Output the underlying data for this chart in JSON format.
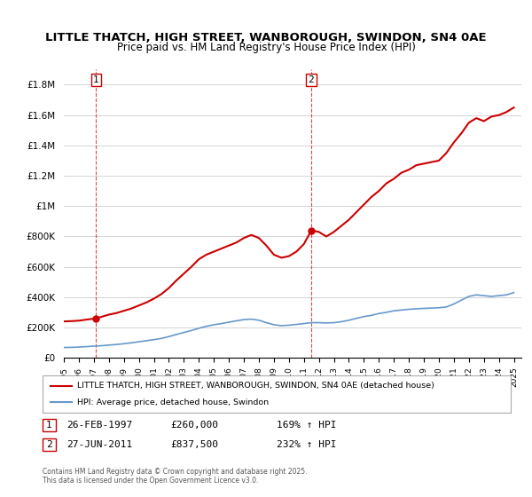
{
  "title": "LITTLE THATCH, HIGH STREET, WANBOROUGH, SWINDON, SN4 0AE",
  "subtitle": "Price paid vs. HM Land Registry's House Price Index (HPI)",
  "legend_line1": "LITTLE THATCH, HIGH STREET, WANBOROUGH, SWINDON, SN4 0AE (detached house)",
  "legend_line2": "HPI: Average price, detached house, Swindon",
  "annotation1_label": "1",
  "annotation1_date": "26-FEB-1997",
  "annotation1_price": "£260,000",
  "annotation1_hpi": "169% ↑ HPI",
  "annotation2_label": "2",
  "annotation2_date": "27-JUN-2011",
  "annotation2_price": "£837,500",
  "annotation2_hpi": "232% ↑ HPI",
  "footer": "Contains HM Land Registry data © Crown copyright and database right 2025.\nThis data is licensed under the Open Government Licence v3.0.",
  "red_color": "#cc0000",
  "blue_color": "#6699cc",
  "ylim_min": 0,
  "ylim_max": 1900000,
  "yticks": [
    0,
    200000,
    400000,
    600000,
    800000,
    1000000,
    1200000,
    1400000,
    1600000,
    1800000
  ],
  "ytick_labels": [
    "£0",
    "£200K",
    "£400K",
    "£600K",
    "£800K",
    "£1M",
    "£1.2M",
    "£1.4M",
    "£1.6M",
    "£1.8M"
  ],
  "x_start": 1995.0,
  "x_end": 2025.5,
  "marker1_x": 1997.15,
  "marker1_y": 260000,
  "marker2_x": 2011.49,
  "marker2_y": 837500,
  "vline1_x": 1997.15,
  "vline2_x": 2011.49,
  "red_x": [
    1995.0,
    1995.5,
    1996.0,
    1996.5,
    1997.15,
    1997.5,
    1998.0,
    1998.5,
    1999.0,
    1999.5,
    2000.0,
    2000.5,
    2001.0,
    2001.5,
    2002.0,
    2002.5,
    2003.0,
    2003.5,
    2004.0,
    2004.5,
    2005.0,
    2005.5,
    2006.0,
    2006.5,
    2007.0,
    2007.5,
    2008.0,
    2008.5,
    2009.0,
    2009.5,
    2010.0,
    2010.5,
    2011.0,
    2011.49,
    2011.5,
    2012.0,
    2012.5,
    2013.0,
    2013.5,
    2014.0,
    2014.5,
    2015.0,
    2015.5,
    2016.0,
    2016.5,
    2017.0,
    2017.5,
    2018.0,
    2018.5,
    2019.0,
    2019.5,
    2020.0,
    2020.5,
    2021.0,
    2021.5,
    2022.0,
    2022.5,
    2023.0,
    2023.5,
    2024.0,
    2024.5,
    2025.0
  ],
  "red_y": [
    240000,
    242000,
    245000,
    252000,
    260000,
    270000,
    285000,
    295000,
    310000,
    325000,
    345000,
    365000,
    390000,
    420000,
    460000,
    510000,
    555000,
    600000,
    650000,
    680000,
    700000,
    720000,
    740000,
    760000,
    790000,
    810000,
    790000,
    740000,
    680000,
    660000,
    670000,
    700000,
    750000,
    837500,
    840000,
    830000,
    800000,
    830000,
    870000,
    910000,
    960000,
    1010000,
    1060000,
    1100000,
    1150000,
    1180000,
    1220000,
    1240000,
    1270000,
    1280000,
    1290000,
    1300000,
    1350000,
    1420000,
    1480000,
    1550000,
    1580000,
    1560000,
    1590000,
    1600000,
    1620000,
    1650000
  ],
  "blue_x": [
    1995.0,
    1995.5,
    1996.0,
    1996.5,
    1997.0,
    1997.5,
    1998.0,
    1998.5,
    1999.0,
    1999.5,
    2000.0,
    2000.5,
    2001.0,
    2001.5,
    2002.0,
    2002.5,
    2003.0,
    2003.5,
    2004.0,
    2004.5,
    2005.0,
    2005.5,
    2006.0,
    2006.5,
    2007.0,
    2007.5,
    2008.0,
    2008.5,
    2009.0,
    2009.5,
    2010.0,
    2010.5,
    2011.0,
    2011.5,
    2012.0,
    2012.5,
    2013.0,
    2013.5,
    2014.0,
    2014.5,
    2015.0,
    2015.5,
    2016.0,
    2016.5,
    2017.0,
    2017.5,
    2018.0,
    2018.5,
    2019.0,
    2019.5,
    2020.0,
    2020.5,
    2021.0,
    2021.5,
    2022.0,
    2022.5,
    2023.0,
    2023.5,
    2024.0,
    2024.5,
    2025.0
  ],
  "blue_y": [
    68000,
    69000,
    71000,
    74000,
    77000,
    80000,
    84000,
    88000,
    93000,
    99000,
    106000,
    113000,
    120000,
    128000,
    140000,
    154000,
    167000,
    180000,
    195000,
    208000,
    218000,
    226000,
    235000,
    244000,
    252000,
    255000,
    248000,
    232000,
    218000,
    212000,
    215000,
    220000,
    226000,
    232000,
    232000,
    230000,
    232000,
    238000,
    248000,
    260000,
    272000,
    280000,
    292000,
    300000,
    310000,
    315000,
    320000,
    323000,
    326000,
    328000,
    330000,
    335000,
    355000,
    380000,
    405000,
    415000,
    410000,
    405000,
    410000,
    415000,
    430000
  ],
  "xticks": [
    1995,
    1996,
    1997,
    1998,
    1999,
    2000,
    2001,
    2002,
    2003,
    2004,
    2005,
    2006,
    2007,
    2008,
    2009,
    2010,
    2011,
    2012,
    2013,
    2014,
    2015,
    2016,
    2017,
    2018,
    2019,
    2020,
    2021,
    2022,
    2023,
    2024,
    2025
  ]
}
